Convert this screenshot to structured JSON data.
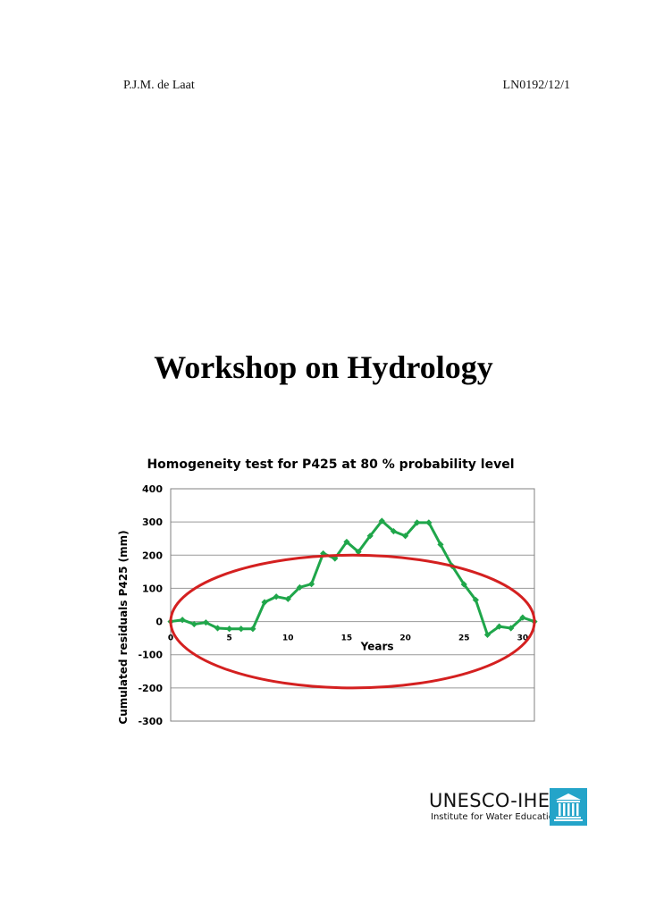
{
  "header": {
    "author": "P.J.M. de Laat",
    "doc_code": "LN0192/12/1"
  },
  "title": "Workshop on Hydrology",
  "logo": {
    "name": "UNESCO-IHE",
    "subtitle": "Institute for Water Education",
    "color": "#24a4c9"
  },
  "chart_data": {
    "type": "line",
    "title": "Homogeneity test for P425 at 80 % probability level",
    "xlabel": "Years",
    "ylabel": "Cumulated residuals P425 (mm)",
    "xlim": [
      0,
      31
    ],
    "ylim": [
      -300,
      400
    ],
    "x_ticks": [
      0,
      5,
      10,
      15,
      20,
      25,
      30
    ],
    "y_ticks": [
      400,
      300,
      200,
      100,
      0,
      -100,
      -200,
      -300
    ],
    "grid": true,
    "series": [
      {
        "color": "#1fa64a",
        "marker": "diamond",
        "x": [
          0,
          1,
          2,
          3,
          4,
          5,
          6,
          7,
          8,
          9,
          10,
          11,
          12,
          13,
          14,
          15,
          16,
          17,
          18,
          19,
          20,
          21,
          22,
          23,
          24,
          25,
          26,
          27,
          28,
          29,
          30,
          31
        ],
        "values": [
          0,
          5,
          -8,
          -3,
          -20,
          -22,
          -22,
          -22,
          58,
          75,
          68,
          103,
          113,
          205,
          190,
          240,
          210,
          258,
          303,
          272,
          258,
          298,
          298,
          232,
          167,
          112,
          65,
          -40,
          -15,
          -20,
          12,
          0
        ]
      }
    ],
    "annotation": {
      "shape": "ellipse",
      "color": "#d42020",
      "center": [
        15.5,
        0
      ],
      "half_width_x": 15.5,
      "half_height_y": 200
    }
  }
}
